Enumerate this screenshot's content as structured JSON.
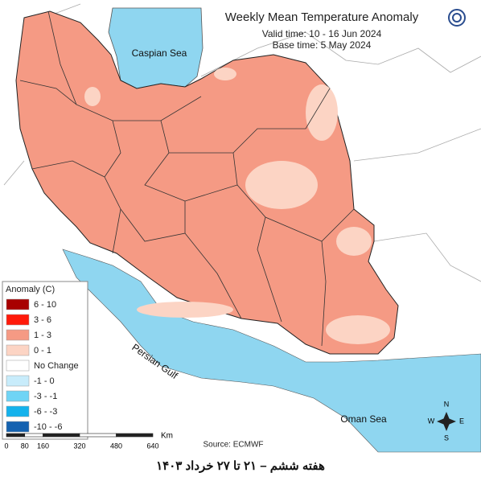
{
  "title": "Weekly Mean Temperature Anomaly",
  "valid_time": "Valid time: 10 - 16 Jun 2024",
  "base_time": "Base time: 5 May 2024",
  "sea_labels": {
    "caspian": "Caspian Sea",
    "gulf": "Persian Gulf",
    "oman": "Oman Sea"
  },
  "legend": {
    "title": "Anomaly (C)",
    "items": [
      {
        "label": "6 - 10",
        "color": "#a80000"
      },
      {
        "label": "3 - 6",
        "color": "#ff1a0a"
      },
      {
        "label": "1 - 3",
        "color": "#f59a84"
      },
      {
        "label": "0 - 1",
        "color": "#fcd4c4"
      },
      {
        "label": "No Change",
        "color": "#ffffff"
      },
      {
        "label": "-1 - 0",
        "color": "#c8ecfb"
      },
      {
        "label": "-3 - -1",
        "color": "#6fd4f5"
      },
      {
        "label": "-6 - -3",
        "color": "#14b2ec"
      },
      {
        "label": "-10 - -6",
        "color": "#1462b0"
      }
    ]
  },
  "scale_bar": {
    "unit": "Km",
    "ticks": [
      0,
      80,
      160,
      320,
      480,
      640
    ]
  },
  "source": "Source: ECMWF",
  "compass": {
    "n": "N",
    "e": "E",
    "s": "S",
    "w": "W"
  },
  "footer": "هفته ششم – ۲۱ تا ۲۷ خرداد ۱۴۰۳"
}
